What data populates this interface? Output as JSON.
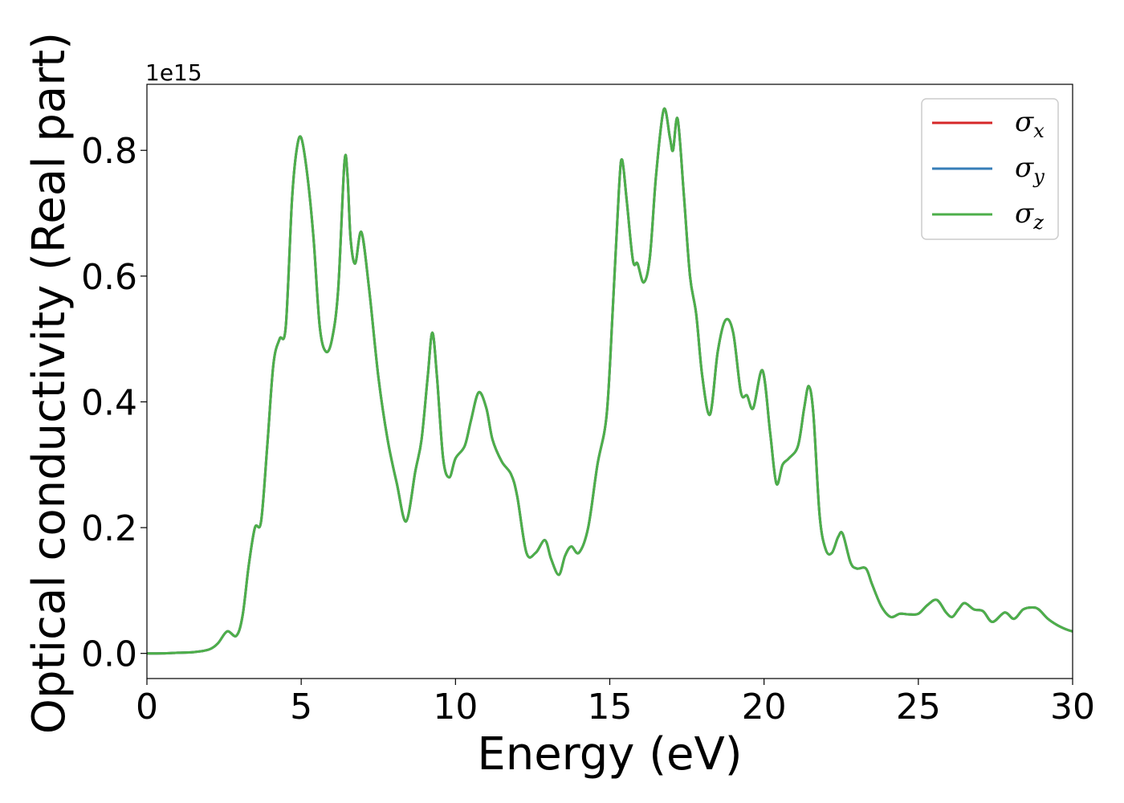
{
  "chart_data": {
    "type": "line",
    "xlabel": "Energy (eV)",
    "ylabel": "Optical conductivity (Real part)",
    "y_offset_label": "1e15",
    "xlim": [
      0,
      30
    ],
    "ylim": [
      -0.04,
      0.905
    ],
    "xticks": [
      0,
      5,
      10,
      15,
      20,
      25,
      30
    ],
    "xtick_labels": [
      "0",
      "5",
      "10",
      "15",
      "20",
      "25",
      "30"
    ],
    "yticks": [
      0.0,
      0.2,
      0.4,
      0.6,
      0.8
    ],
    "ytick_labels": [
      "0.0",
      "0.2",
      "0.4",
      "0.6",
      "0.8"
    ],
    "grid": false,
    "legend_position": "top-right",
    "x": [
      0,
      0.5,
      1,
      1.5,
      2,
      2.3,
      2.6,
      2.9,
      3.1,
      3.3,
      3.5,
      3.7,
      3.9,
      4.1,
      4.3,
      4.5,
      4.7,
      4.85,
      5.0,
      5.2,
      5.4,
      5.6,
      5.8,
      6.0,
      6.2,
      6.4,
      6.5,
      6.6,
      6.75,
      6.95,
      7.2,
      7.5,
      7.8,
      8.1,
      8.4,
      8.7,
      8.9,
      9.1,
      9.25,
      9.4,
      9.6,
      9.8,
      10.0,
      10.3,
      10.5,
      10.75,
      11.0,
      11.2,
      11.5,
      11.8,
      12.0,
      12.3,
      12.6,
      12.9,
      13.1,
      13.35,
      13.55,
      13.75,
      14.0,
      14.3,
      14.6,
      14.9,
      15.1,
      15.3,
      15.4,
      15.55,
      15.75,
      15.9,
      16.1,
      16.3,
      16.5,
      16.75,
      16.95,
      17.05,
      17.2,
      17.4,
      17.6,
      17.8,
      18.0,
      18.25,
      18.5,
      18.75,
      19.0,
      19.25,
      19.45,
      19.65,
      19.95,
      20.2,
      20.4,
      20.6,
      20.8,
      21.1,
      21.3,
      21.45,
      21.6,
      21.8,
      22.0,
      22.2,
      22.4,
      22.55,
      22.8,
      23.0,
      23.3,
      23.5,
      23.8,
      24.1,
      24.4,
      24.7,
      25.0,
      25.3,
      25.6,
      25.9,
      26.1,
      26.3,
      26.5,
      26.8,
      27.1,
      27.4,
      27.8,
      28.1,
      28.4,
      28.7,
      28.9,
      29.2,
      29.5,
      29.8,
      30.0
    ],
    "series": [
      {
        "name": "σ_x",
        "legend_label": "σ",
        "legend_sub": "x",
        "color": "#d62728",
        "values": [
          0.0,
          0.0,
          0.001,
          0.002,
          0.006,
          0.016,
          0.035,
          0.028,
          0.06,
          0.14,
          0.2,
          0.21,
          0.33,
          0.46,
          0.5,
          0.52,
          0.72,
          0.8,
          0.82,
          0.76,
          0.66,
          0.52,
          0.48,
          0.5,
          0.58,
          0.78,
          0.76,
          0.66,
          0.62,
          0.67,
          0.58,
          0.44,
          0.34,
          0.27,
          0.21,
          0.29,
          0.34,
          0.44,
          0.51,
          0.44,
          0.31,
          0.28,
          0.31,
          0.33,
          0.37,
          0.415,
          0.39,
          0.34,
          0.305,
          0.285,
          0.25,
          0.16,
          0.16,
          0.18,
          0.15,
          0.125,
          0.155,
          0.17,
          0.16,
          0.2,
          0.3,
          0.38,
          0.55,
          0.74,
          0.785,
          0.72,
          0.625,
          0.62,
          0.59,
          0.63,
          0.76,
          0.865,
          0.82,
          0.8,
          0.85,
          0.73,
          0.6,
          0.54,
          0.44,
          0.38,
          0.48,
          0.53,
          0.51,
          0.415,
          0.41,
          0.39,
          0.45,
          0.35,
          0.27,
          0.3,
          0.31,
          0.33,
          0.39,
          0.425,
          0.38,
          0.22,
          0.165,
          0.16,
          0.185,
          0.19,
          0.145,
          0.135,
          0.135,
          0.11,
          0.075,
          0.058,
          0.063,
          0.062,
          0.063,
          0.077,
          0.085,
          0.065,
          0.058,
          0.07,
          0.08,
          0.07,
          0.067,
          0.05,
          0.065,
          0.055,
          0.07,
          0.073,
          0.07,
          0.055,
          0.045,
          0.038,
          0.035
        ]
      },
      {
        "name": "σ_y",
        "legend_label": "σ",
        "legend_sub": "y",
        "color": "#377eb8",
        "values": [
          0.0,
          0.0,
          0.001,
          0.002,
          0.006,
          0.016,
          0.035,
          0.028,
          0.06,
          0.14,
          0.2,
          0.21,
          0.33,
          0.46,
          0.5,
          0.52,
          0.72,
          0.8,
          0.82,
          0.76,
          0.66,
          0.52,
          0.48,
          0.5,
          0.58,
          0.78,
          0.76,
          0.66,
          0.62,
          0.67,
          0.58,
          0.44,
          0.34,
          0.27,
          0.21,
          0.29,
          0.34,
          0.44,
          0.51,
          0.44,
          0.31,
          0.28,
          0.31,
          0.33,
          0.37,
          0.415,
          0.39,
          0.34,
          0.305,
          0.285,
          0.25,
          0.16,
          0.16,
          0.18,
          0.15,
          0.125,
          0.155,
          0.17,
          0.16,
          0.2,
          0.3,
          0.38,
          0.55,
          0.74,
          0.785,
          0.72,
          0.625,
          0.62,
          0.59,
          0.63,
          0.76,
          0.865,
          0.82,
          0.8,
          0.85,
          0.73,
          0.6,
          0.54,
          0.44,
          0.38,
          0.48,
          0.53,
          0.51,
          0.415,
          0.41,
          0.39,
          0.45,
          0.35,
          0.27,
          0.3,
          0.31,
          0.33,
          0.39,
          0.425,
          0.38,
          0.22,
          0.165,
          0.16,
          0.185,
          0.19,
          0.145,
          0.135,
          0.135,
          0.11,
          0.075,
          0.058,
          0.063,
          0.062,
          0.063,
          0.077,
          0.085,
          0.065,
          0.058,
          0.07,
          0.08,
          0.07,
          0.067,
          0.05,
          0.065,
          0.055,
          0.07,
          0.073,
          0.07,
          0.055,
          0.045,
          0.038,
          0.035
        ]
      },
      {
        "name": "σ_z",
        "legend_label": "σ",
        "legend_sub": "z",
        "color": "#4daf4a",
        "values": [
          0.0,
          0.0,
          0.001,
          0.002,
          0.006,
          0.016,
          0.035,
          0.028,
          0.06,
          0.14,
          0.2,
          0.21,
          0.33,
          0.46,
          0.5,
          0.52,
          0.72,
          0.8,
          0.82,
          0.76,
          0.66,
          0.52,
          0.48,
          0.5,
          0.58,
          0.78,
          0.76,
          0.66,
          0.62,
          0.67,
          0.58,
          0.44,
          0.34,
          0.27,
          0.21,
          0.29,
          0.34,
          0.44,
          0.51,
          0.44,
          0.31,
          0.28,
          0.31,
          0.33,
          0.37,
          0.415,
          0.39,
          0.34,
          0.305,
          0.285,
          0.25,
          0.16,
          0.16,
          0.18,
          0.15,
          0.125,
          0.155,
          0.17,
          0.16,
          0.2,
          0.3,
          0.38,
          0.55,
          0.74,
          0.785,
          0.72,
          0.625,
          0.62,
          0.59,
          0.63,
          0.76,
          0.865,
          0.82,
          0.8,
          0.85,
          0.73,
          0.6,
          0.54,
          0.44,
          0.38,
          0.48,
          0.53,
          0.51,
          0.415,
          0.41,
          0.39,
          0.45,
          0.35,
          0.27,
          0.3,
          0.31,
          0.33,
          0.39,
          0.425,
          0.38,
          0.22,
          0.165,
          0.16,
          0.185,
          0.19,
          0.145,
          0.135,
          0.135,
          0.11,
          0.075,
          0.058,
          0.063,
          0.062,
          0.063,
          0.077,
          0.085,
          0.065,
          0.058,
          0.07,
          0.08,
          0.07,
          0.067,
          0.05,
          0.065,
          0.055,
          0.07,
          0.073,
          0.07,
          0.055,
          0.045,
          0.038,
          0.035
        ]
      }
    ]
  }
}
